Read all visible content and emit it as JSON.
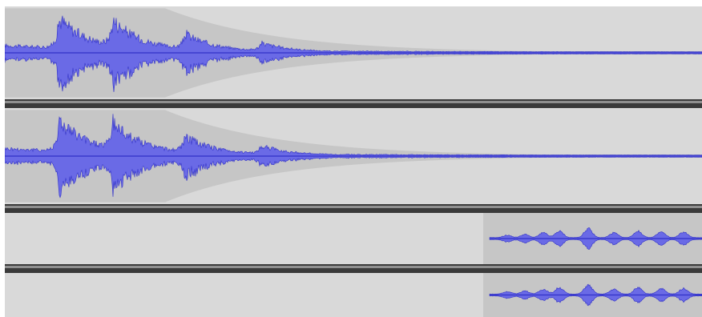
{
  "editor": {
    "tracks": [
      {
        "id": "track-1-left",
        "kind": "decay",
        "clip_start": 0.0
      },
      {
        "id": "track-1-right",
        "kind": "decay",
        "clip_start": 0.0
      },
      {
        "id": "track-2-left",
        "kind": "speech",
        "clip_start": 0.686
      },
      {
        "id": "track-2-right",
        "kind": "speech",
        "clip_start": 0.686
      }
    ]
  },
  "colors": {
    "track_background": "#d9d9d9",
    "selection_shade": "#c6c6c6",
    "waveform_fill": "#6a6ae6",
    "waveform_line": "#3232c8",
    "separator_dark": "#3a3a3a",
    "separator_light": "#8f8f8f",
    "page_background": "#ffffff"
  }
}
